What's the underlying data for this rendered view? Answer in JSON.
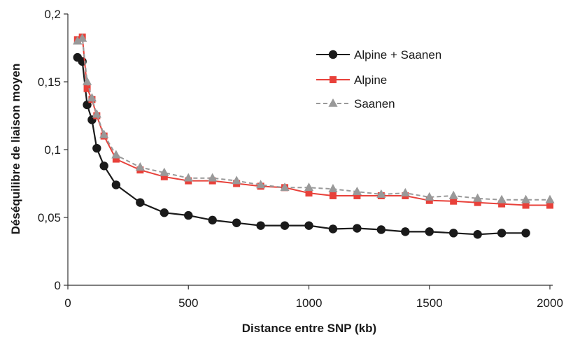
{
  "chart_data": {
    "type": "line",
    "title": "",
    "xlabel": "Distance entre SNP (kb)",
    "ylabel": "Déséquilibre de liaison  moyen",
    "xlim": [
      0,
      2000
    ],
    "ylim": [
      0,
      0.2
    ],
    "xticks": [
      0,
      500,
      1000,
      1500,
      2000
    ],
    "xtick_labels": [
      "0",
      "500",
      "1000",
      "1500",
      "2000"
    ],
    "yticks": [
      0,
      0.05,
      0.1,
      0.15,
      0.2
    ],
    "ytick_labels": [
      "0",
      "0,05",
      "0,1",
      "0,15",
      "0,2"
    ],
    "grid": false,
    "legend_position": "top-right",
    "series": [
      {
        "name": "Alpine + Saanen",
        "color": "#1a1a1a",
        "marker": "circle",
        "line_style": "solid",
        "x": [
          40,
          60,
          80,
          100,
          120,
          150,
          200,
          300,
          400,
          500,
          600,
          700,
          800,
          900,
          1000,
          1100,
          1200,
          1300,
          1400,
          1500,
          1600,
          1700,
          1800,
          1900
        ],
        "y": [
          0.168,
          0.165,
          0.133,
          0.122,
          0.101,
          0.088,
          0.074,
          0.061,
          0.0535,
          0.0515,
          0.048,
          0.046,
          0.044,
          0.044,
          0.044,
          0.0415,
          0.042,
          0.041,
          0.0395,
          0.0395,
          0.0385,
          0.0375,
          0.0385,
          0.0385
        ]
      },
      {
        "name": "Alpine",
        "color": "#e8413a",
        "marker": "square",
        "line_style": "solid",
        "x": [
          40,
          60,
          80,
          100,
          120,
          150,
          200,
          300,
          400,
          500,
          600,
          700,
          800,
          900,
          1000,
          1100,
          1200,
          1300,
          1400,
          1500,
          1600,
          1700,
          1800,
          1900,
          2000
        ],
        "y": [
          0.181,
          0.183,
          0.145,
          0.137,
          0.125,
          0.11,
          0.093,
          0.085,
          0.08,
          0.077,
          0.077,
          0.075,
          0.073,
          0.072,
          0.068,
          0.066,
          0.066,
          0.066,
          0.066,
          0.0625,
          0.062,
          0.061,
          0.06,
          0.059,
          0.059
        ]
      },
      {
        "name": "Saanen",
        "color": "#999999",
        "marker": "triangle",
        "line_style": "dashed",
        "x": [
          40,
          60,
          80,
          100,
          120,
          150,
          200,
          300,
          400,
          500,
          600,
          700,
          800,
          900,
          1000,
          1100,
          1200,
          1300,
          1400,
          1500,
          1600,
          1700,
          1800,
          1900,
          2000
        ],
        "y": [
          0.18,
          0.182,
          0.15,
          0.138,
          0.126,
          0.111,
          0.096,
          0.087,
          0.083,
          0.079,
          0.079,
          0.077,
          0.074,
          0.072,
          0.072,
          0.071,
          0.069,
          0.067,
          0.068,
          0.065,
          0.066,
          0.064,
          0.063,
          0.063,
          0.063
        ]
      }
    ]
  }
}
